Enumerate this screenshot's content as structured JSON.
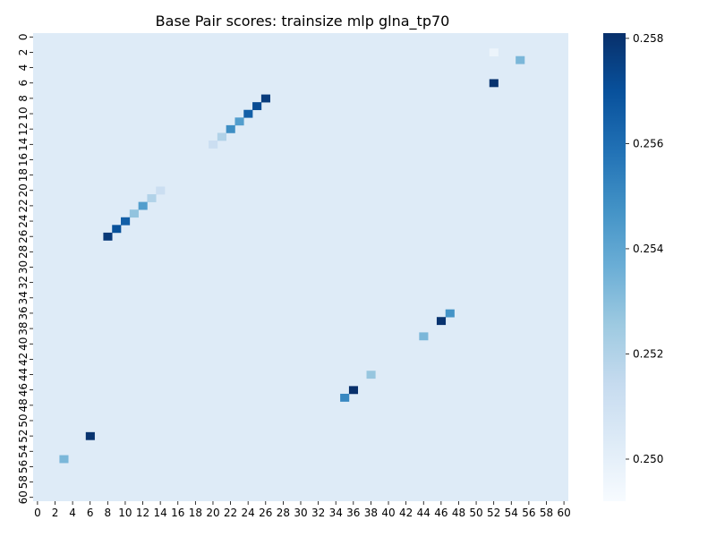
{
  "chart_data": {
    "type": "heatmap",
    "title": "Base Pair scores: trainsize mlp glna_tp70",
    "xlabel": "",
    "ylabel": "",
    "rows": 61,
    "cols": 61,
    "x_ticks": [
      "0",
      "2",
      "4",
      "6",
      "8",
      "10",
      "12",
      "14",
      "16",
      "18",
      "20",
      "22",
      "24",
      "26",
      "28",
      "30",
      "32",
      "34",
      "36",
      "38",
      "40",
      "42",
      "44",
      "46",
      "48",
      "50",
      "52",
      "54",
      "56",
      "58",
      "60"
    ],
    "y_ticks": [
      "0",
      "2",
      "4",
      "6",
      "8",
      "10",
      "12",
      "14",
      "16",
      "18",
      "20",
      "22",
      "24",
      "26",
      "28",
      "30",
      "32",
      "34",
      "36",
      "38",
      "40",
      "42",
      "44",
      "46",
      "48",
      "50",
      "52",
      "54",
      "56",
      "58",
      "60"
    ],
    "colorbar": {
      "min": 0.2492,
      "max": 0.2581,
      "ticks": [
        "0.250",
        "0.252",
        "0.254",
        "0.256",
        "0.258"
      ],
      "tick_values": [
        0.25,
        0.252,
        0.254,
        0.256,
        0.258
      ],
      "colormap": "Blues"
    },
    "baseline_value": 0.2503,
    "highlight_cells": [
      {
        "row": 2,
        "col": 52,
        "value": 0.2497
      },
      {
        "row": 3,
        "col": 55,
        "value": 0.2533
      },
      {
        "row": 6,
        "col": 52,
        "value": 0.258
      },
      {
        "row": 8,
        "col": 26,
        "value": 0.2577
      },
      {
        "row": 9,
        "col": 25,
        "value": 0.2572
      },
      {
        "row": 10,
        "col": 24,
        "value": 0.2565
      },
      {
        "row": 11,
        "col": 23,
        "value": 0.2543
      },
      {
        "row": 12,
        "col": 22,
        "value": 0.2549
      },
      {
        "row": 13,
        "col": 21,
        "value": 0.252
      },
      {
        "row": 14,
        "col": 20,
        "value": 0.2512
      },
      {
        "row": 20,
        "col": 14,
        "value": 0.2512
      },
      {
        "row": 21,
        "col": 13,
        "value": 0.252
      },
      {
        "row": 22,
        "col": 12,
        "value": 0.2543
      },
      {
        "row": 23,
        "col": 11,
        "value": 0.2528
      },
      {
        "row": 24,
        "col": 10,
        "value": 0.2565
      },
      {
        "row": 25,
        "col": 9,
        "value": 0.257
      },
      {
        "row": 26,
        "col": 8,
        "value": 0.2578
      },
      {
        "row": 36,
        "col": 47,
        "value": 0.2547
      },
      {
        "row": 37,
        "col": 46,
        "value": 0.258
      },
      {
        "row": 39,
        "col": 44,
        "value": 0.2533
      },
      {
        "row": 44,
        "col": 38,
        "value": 0.2527
      },
      {
        "row": 46,
        "col": 36,
        "value": 0.2581
      },
      {
        "row": 47,
        "col": 35,
        "value": 0.2551
      },
      {
        "row": 52,
        "col": 6,
        "value": 0.258
      },
      {
        "row": 55,
        "col": 3,
        "value": 0.2533
      }
    ]
  }
}
